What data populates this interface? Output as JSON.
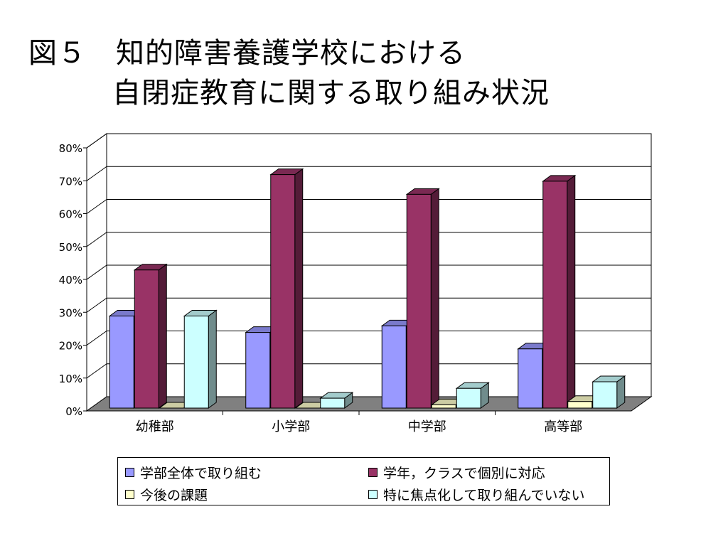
{
  "title": {
    "line1": "図５　知的障害養護学校における",
    "line2": "自閉症教育に関する取り組み状況"
  },
  "chart_data": {
    "type": "bar",
    "categories": [
      "幼稚部",
      "小学部",
      "中学部",
      "高等部"
    ],
    "series": [
      {
        "name": "学部全体で取り組む",
        "values": [
          28,
          23,
          25,
          18
        ],
        "color": "#9999ff"
      },
      {
        "name": "学年，クラスで個別に対応",
        "values": [
          42,
          71,
          65,
          69
        ],
        "color": "#993366"
      },
      {
        "name": "今後の課題",
        "values": [
          0,
          0,
          1,
          2
        ],
        "color": "#ffffcc"
      },
      {
        "name": "特に焦点化して取り組んでいない",
        "values": [
          28,
          3,
          6,
          8
        ],
        "color": "#ccffff"
      }
    ],
    "yticks": [
      "0%",
      "10%",
      "20%",
      "30%",
      "40%",
      "50%",
      "60%",
      "70%",
      "80%"
    ],
    "ylim": [
      0,
      80
    ],
    "grid": true,
    "legend_position": "bottom"
  }
}
